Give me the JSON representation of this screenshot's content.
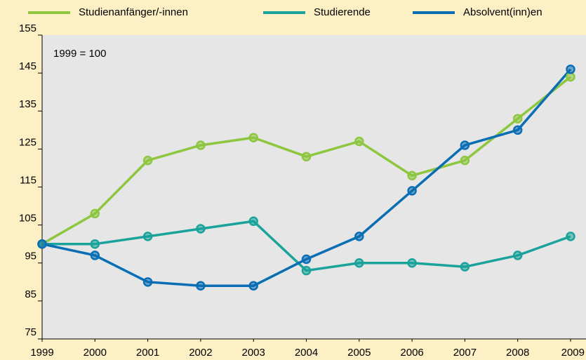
{
  "chart_data": {
    "type": "line",
    "annotation": "1999 = 100",
    "x": [
      1999,
      2000,
      2001,
      2002,
      2003,
      2004,
      2005,
      2006,
      2007,
      2008,
      2009
    ],
    "xlim": [
      1999,
      2009
    ],
    "xticks": [
      1999,
      2000,
      2001,
      2002,
      2003,
      2004,
      2005,
      2006,
      2007,
      2008,
      2009
    ],
    "ylim": [
      75,
      155
    ],
    "yticks": [
      75,
      85,
      95,
      105,
      115,
      125,
      135,
      145,
      155
    ],
    "grid": false,
    "legend": "top",
    "series": [
      {
        "name": "Studienanfänger/-innen",
        "color": "#8dc63f",
        "values": [
          100,
          108,
          122,
          126,
          128,
          123,
          127,
          118,
          122,
          133,
          144
        ]
      },
      {
        "name": "Studierende",
        "color": "#1aa39a",
        "values": [
          100,
          100,
          102,
          104,
          106,
          93,
          95,
          95,
          94,
          97,
          102
        ]
      },
      {
        "name": "Absolvent(inn)en",
        "color": "#0a6eb4",
        "values": [
          100,
          97,
          90,
          89,
          89,
          96,
          102,
          114,
          126,
          130,
          146
        ]
      }
    ]
  }
}
